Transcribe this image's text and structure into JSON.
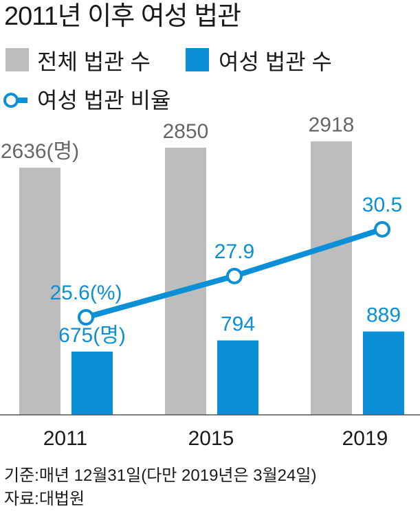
{
  "chart_data": {
    "type": "bar",
    "title": "2011년 이후 여성 법관",
    "categories": [
      "2011",
      "2015",
      "2019"
    ],
    "series": [
      {
        "name": "전체 법관 수",
        "kind": "bar",
        "color": "#bdbdbd",
        "values": [
          2636,
          2850,
          2918
        ],
        "labels": [
          "2636(명)",
          "2850",
          "2918"
        ]
      },
      {
        "name": "여성 법관 수",
        "kind": "bar",
        "color": "#0b8fd6",
        "values": [
          675,
          794,
          889
        ],
        "labels": [
          "675(명)",
          "794",
          "889"
        ]
      },
      {
        "name": "여성 법관 비율",
        "kind": "line",
        "color": "#0b8fd6",
        "values": [
          25.6,
          27.9,
          30.5
        ],
        "labels": [
          "25.6(%)",
          "27.9",
          "30.5"
        ]
      }
    ],
    "legend_position": "top-left",
    "grid": false,
    "notes": [
      "기준:매년 12월31일(다만 2019년은 3월24일)",
      "자료:대법원"
    ]
  }
}
